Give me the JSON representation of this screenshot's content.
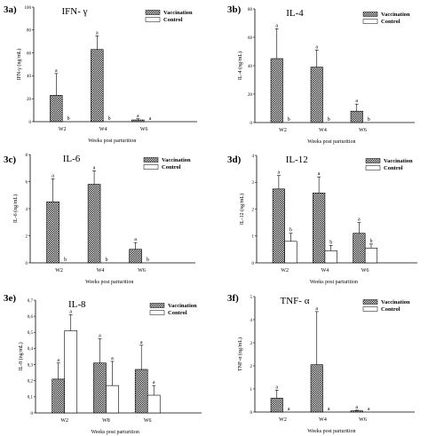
{
  "chart_data": [
    {
      "type": "bar",
      "panel": "3a)",
      "title": "IFN- γ",
      "ylabel": "IFN-γ (ng/mL)",
      "xlabel": "Weeks post parturition",
      "categories": [
        "W2",
        "W4",
        "W6"
      ],
      "ylim": [
        0,
        100
      ],
      "yticks": [
        "0",
        "20",
        "40",
        "60",
        "80",
        "100"
      ],
      "series": [
        {
          "name": "Vaccination",
          "values": [
            23,
            63,
            1.5
          ],
          "errors": [
            19,
            12,
            1
          ],
          "sig": [
            "a",
            "a",
            "a"
          ]
        },
        {
          "name": "Control",
          "values": [
            0,
            0,
            0
          ],
          "errors": [
            0,
            0,
            0
          ],
          "sig": [
            "b",
            "b",
            "a"
          ]
        }
      ],
      "legend": "top-right"
    },
    {
      "type": "bar",
      "panel": "3b)",
      "title": "IL-4",
      "ylabel": "IL-4 (ng/mL)",
      "xlabel": "Weeks post parturition",
      "categories": [
        "W2",
        "W4",
        "W6"
      ],
      "ylim": [
        0,
        80
      ],
      "yticks": [
        "0",
        "20",
        "40",
        "60",
        "80"
      ],
      "series": [
        {
          "name": "Vaccination",
          "values": [
            45,
            39,
            8
          ],
          "errors": [
            21,
            12,
            5
          ],
          "sig": [
            "a",
            "a",
            "a"
          ]
        },
        {
          "name": "Control",
          "values": [
            0,
            0,
            0
          ],
          "errors": [
            0,
            0,
            0
          ],
          "sig": [
            "b",
            "b",
            "b"
          ]
        }
      ],
      "legend": "top-right"
    },
    {
      "type": "bar",
      "panel": "3c)",
      "title": "IL-6",
      "ylabel": "IL-6 (ng/mL)",
      "xlabel": "Weeks post parturition",
      "categories": [
        "W2",
        "W4",
        "W6"
      ],
      "ylim": [
        0,
        8
      ],
      "yticks": [
        "0",
        "2",
        "4",
        "6",
        "8"
      ],
      "series": [
        {
          "name": "Vaccination",
          "values": [
            4.5,
            5.8,
            1.0
          ],
          "errors": [
            1.7,
            1.0,
            0.5
          ],
          "sig": [
            "a",
            "a",
            "a"
          ]
        },
        {
          "name": "Control",
          "values": [
            0,
            0,
            0
          ],
          "errors": [
            0,
            0,
            0
          ],
          "sig": [
            "b",
            "b",
            "b"
          ]
        }
      ],
      "legend": "top-right"
    },
    {
      "type": "bar",
      "panel": "3d)",
      "title": "IL-12",
      "ylabel": "IL-12 (ng/mL)",
      "xlabel": "Weeks post parturition",
      "categories": [
        "W2",
        "W4",
        "W6"
      ],
      "ylim": [
        0,
        4
      ],
      "yticks": [
        "0",
        "1",
        "2",
        "3",
        "4"
      ],
      "series": [
        {
          "name": "Vaccination",
          "values": [
            2.75,
            2.6,
            1.1
          ],
          "errors": [
            0.5,
            0.6,
            0.4
          ],
          "sig": [
            "a",
            "a",
            "a"
          ]
        },
        {
          "name": "Control",
          "values": [
            0.8,
            0.45,
            0.55
          ],
          "errors": [
            0.3,
            0.2,
            0.15
          ],
          "sig": [
            "b",
            "b",
            "b"
          ]
        }
      ],
      "legend": "top-right"
    },
    {
      "type": "bar",
      "panel": "3e)",
      "title": "IL-8",
      "ylabel": "IL-8 (ng/mL)",
      "xlabel": "Weeks post parturition",
      "categories": [
        "W2",
        "W8",
        "W6"
      ],
      "ylim": [
        0,
        0.7
      ],
      "yticks": [
        "0",
        "0,1",
        "0,2",
        "0,3",
        "0,4",
        "0,5",
        "0,6",
        "0,7"
      ],
      "series": [
        {
          "name": "Vaccination",
          "values": [
            0.21,
            0.31,
            0.27
          ],
          "errors": [
            0.1,
            0.15,
            0.15
          ],
          "sig": [
            "a",
            "a",
            "a"
          ]
        },
        {
          "name": "Control",
          "values": [
            0.51,
            0.17,
            0.11
          ],
          "errors": [
            0.1,
            0.15,
            0.06
          ],
          "sig": [
            "a",
            "a",
            "a"
          ]
        }
      ],
      "legend": "top-right"
    },
    {
      "type": "bar",
      "panel": "3f)",
      "title": "TNF- α",
      "ylabel": "TNF-α (ng/mL)",
      "xlabel": "Weeks post parturition",
      "categories": [
        "W2",
        "W4",
        "W6"
      ],
      "ylim": [
        0,
        5
      ],
      "yticks": [
        "0",
        "1",
        "2",
        "3",
        "4",
        "5"
      ],
      "series": [
        {
          "name": "Vaccination",
          "values": [
            0.6,
            2.05,
            0.05
          ],
          "errors": [
            0.35,
            2.3,
            0.03
          ],
          "sig": [
            "a",
            "a",
            "a"
          ]
        },
        {
          "name": "Control",
          "values": [
            0,
            0,
            0
          ],
          "errors": [
            0,
            0,
            0
          ],
          "sig": [
            "a",
            "a",
            "a"
          ]
        }
      ],
      "legend": "top-right"
    }
  ]
}
